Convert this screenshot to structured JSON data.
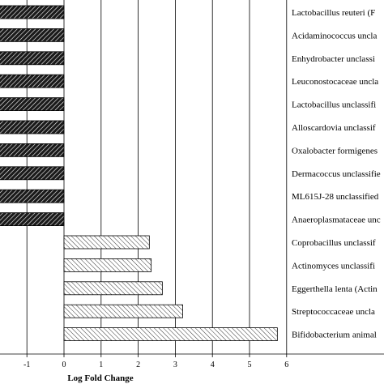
{
  "chart_data": {
    "type": "bar",
    "orientation": "horizontal",
    "xlabel": "Log Fold Change",
    "ylabel": "",
    "xlim": [
      -1.8,
      6.6
    ],
    "xticks": [
      -1,
      0,
      1,
      2,
      3,
      4,
      5,
      6
    ],
    "xtick_labels": [
      "-1",
      "0",
      "1",
      "2",
      "3",
      "4",
      "5",
      "6"
    ],
    "grid": "vertical",
    "categories": [
      "Lactobacillus reuteri (F",
      "Acidaminococcus uncla",
      "Enhydrobacter unclassi",
      "Leuconostocaceae uncla",
      "Lactobacillus unclassifi",
      "Alloscardovia unclassif",
      "Oxalobacter formigenes",
      "Dermacoccus unclassifie",
      "ML615J-28 unclassified",
      "Anaeroplasmataceae unc",
      "Coprobacillus unclassif",
      "Actinomyces unclassifi",
      "Eggerthella lenta (Actin",
      "Streptococcaceae uncla",
      "Bifidobacterium animal"
    ],
    "values": [
      -2.0,
      -2.0,
      -2.0,
      -2.0,
      -2.0,
      -2.0,
      -2.0,
      -2.0,
      -2.0,
      -2.0,
      2.3,
      2.35,
      2.65,
      3.2,
      5.75
    ],
    "colors": {
      "negative_fill": "#1a1a1a",
      "negative_hatch": "#ffffff",
      "positive_fill": "#ffffff",
      "positive_hatch": "#333333",
      "gridline": "#000000",
      "edge": "#000000"
    }
  }
}
